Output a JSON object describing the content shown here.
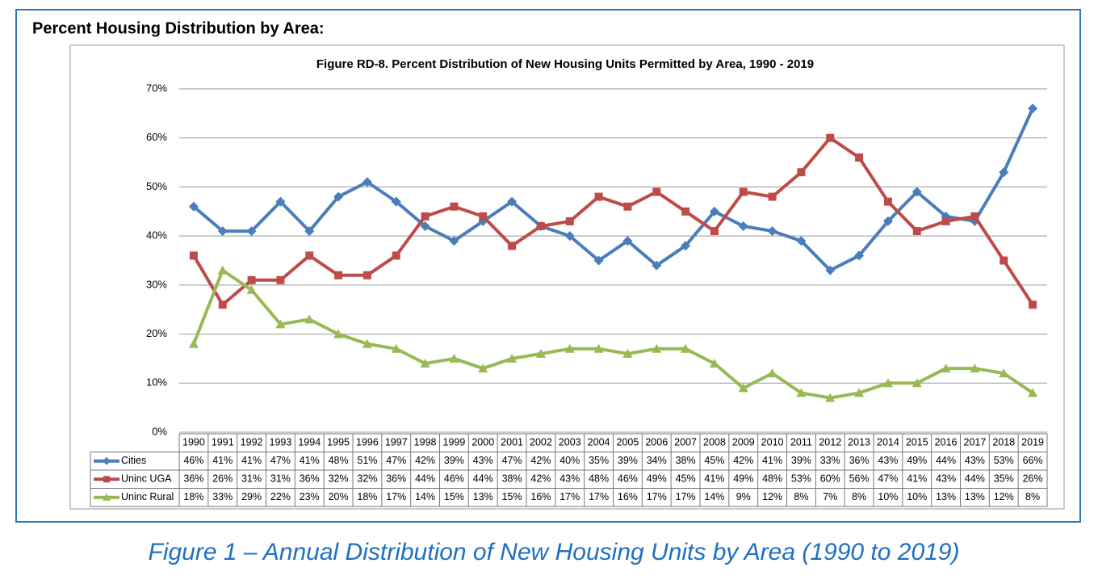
{
  "header": "Percent Housing Distribution by Area:",
  "caption": "Figure 1 – Annual Distribution of New Housing Units by Area (1990 to 2019)",
  "chart_data": {
    "type": "line",
    "title": "Figure RD-8. Percent Distribution of New Housing Units Permitted by Area, 1990 - 2019",
    "categories": [
      "1990",
      "1991",
      "1992",
      "1993",
      "1994",
      "1995",
      "1996",
      "1997",
      "1998",
      "1999",
      "2000",
      "2001",
      "2002",
      "2003",
      "2004",
      "2005",
      "2006",
      "2007",
      "2008",
      "2009",
      "2010",
      "2011",
      "2012",
      "2013",
      "2014",
      "2015",
      "2016",
      "2017",
      "2018",
      "2019"
    ],
    "series": [
      {
        "name": "Cities",
        "color": "#4a7ebb",
        "marker": "diamond",
        "values": [
          46,
          41,
          41,
          47,
          41,
          48,
          51,
          47,
          42,
          39,
          43,
          47,
          42,
          40,
          35,
          39,
          34,
          38,
          45,
          42,
          41,
          39,
          33,
          36,
          43,
          49,
          44,
          43,
          53,
          66
        ],
        "value_labels": [
          "46%",
          "41%",
          "41%",
          "47%",
          "41%",
          "48%",
          "51%",
          "47%",
          "42%",
          "39%",
          "43%",
          "47%",
          "42%",
          "40%",
          "35%",
          "39%",
          "34%",
          "38%",
          "45%",
          "42%",
          "41%",
          "39%",
          "33%",
          "36%",
          "43%",
          "49%",
          "44%",
          "43%",
          "53%",
          "66%"
        ]
      },
      {
        "name": "Uninc UGA",
        "color": "#be4b48",
        "marker": "square",
        "values": [
          36,
          26,
          31,
          31,
          36,
          32,
          32,
          36,
          44,
          46,
          44,
          38,
          42,
          43,
          48,
          46,
          49,
          45,
          41,
          49,
          48,
          53,
          60,
          56,
          47,
          41,
          43,
          44,
          35,
          26
        ],
        "value_labels": [
          "36%",
          "26%",
          "31%",
          "31%",
          "36%",
          "32%",
          "32%",
          "36%",
          "44%",
          "46%",
          "44%",
          "38%",
          "42%",
          "43%",
          "48%",
          "46%",
          "49%",
          "45%",
          "41%",
          "49%",
          "48%",
          "53%",
          "60%",
          "56%",
          "47%",
          "41%",
          "43%",
          "44%",
          "35%",
          "26%"
        ]
      },
      {
        "name": "Uninc Rural",
        "color": "#98b954",
        "marker": "triangle",
        "values": [
          18,
          33,
          29,
          22,
          23,
          20,
          18,
          17,
          14,
          15,
          13,
          15,
          16,
          17,
          17,
          16,
          17,
          17,
          14,
          9,
          12,
          8,
          7,
          8,
          10,
          10,
          13,
          13,
          12,
          8
        ],
        "value_labels": [
          "18%",
          "33%",
          "29%",
          "22%",
          "23%",
          "20%",
          "18%",
          "17%",
          "14%",
          "15%",
          "13%",
          "15%",
          "16%",
          "17%",
          "17%",
          "16%",
          "17%",
          "17%",
          "14%",
          "9%",
          "12%",
          "8%",
          "7%",
          "8%",
          "10%",
          "10%",
          "13%",
          "13%",
          "12%",
          "8%"
        ]
      }
    ],
    "ylim": [
      0,
      70
    ],
    "yticks": [
      {
        "value": 0,
        "label": "0%"
      },
      {
        "value": 10,
        "label": "10%"
      },
      {
        "value": 20,
        "label": "20%"
      },
      {
        "value": 30,
        "label": "30%"
      },
      {
        "value": 40,
        "label": "40%"
      },
      {
        "value": 50,
        "label": "50%"
      },
      {
        "value": 60,
        "label": "60%"
      },
      {
        "value": 70,
        "label": "70%"
      }
    ],
    "grid": true
  }
}
